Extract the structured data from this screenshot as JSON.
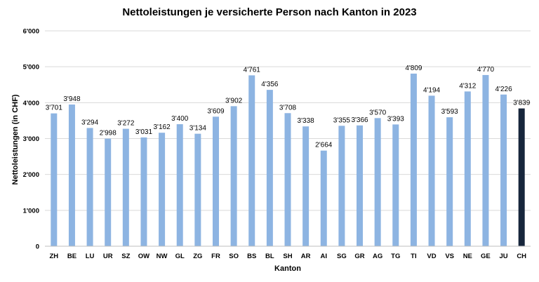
{
  "chart_data": {
    "type": "bar",
    "title": "Nettoleistungen je versicherte Person nach Kanton in 2023",
    "xlabel": "Kanton",
    "ylabel": "Nettoleistungen (in CHF)",
    "ylim": [
      0,
      6000
    ],
    "yticks": [
      0,
      1000,
      2000,
      3000,
      4000,
      5000,
      6000
    ],
    "ytick_labels": [
      "0",
      "1'000",
      "2'000",
      "3'000",
      "4'000",
      "5'000",
      "6'000"
    ],
    "grid": true,
    "categories": [
      "ZH",
      "BE",
      "LU",
      "UR",
      "SZ",
      "OW",
      "NW",
      "GL",
      "ZG",
      "FR",
      "SO",
      "BS",
      "BL",
      "SH",
      "AR",
      "AI",
      "SG",
      "GR",
      "AG",
      "TG",
      "TI",
      "VD",
      "VS",
      "NE",
      "GE",
      "JU",
      "CH"
    ],
    "values": [
      3701,
      3948,
      3294,
      2998,
      3272,
      3031,
      3162,
      3400,
      3134,
      3609,
      3902,
      4761,
      4356,
      3708,
      3338,
      2664,
      3355,
      3366,
      3570,
      3393,
      4809,
      4194,
      3593,
      4312,
      4770,
      4226,
      3839
    ],
    "value_labels": [
      "3'701",
      "3'948",
      "3'294",
      "2'998",
      "3'272",
      "3'031",
      "3'162",
      "3'400",
      "3'134",
      "3'609",
      "3'902",
      "4'761",
      "4'356",
      "3'708",
      "3'338",
      "2'664",
      "3'355",
      "3'366",
      "3'570",
      "3'393",
      "4'809",
      "4'194",
      "3'593",
      "4'312",
      "4'770",
      "4'226",
      "3'839"
    ],
    "colors": {
      "bar": "#8db4e2",
      "highlight": "#17263c"
    },
    "highlight_category": "CH"
  }
}
